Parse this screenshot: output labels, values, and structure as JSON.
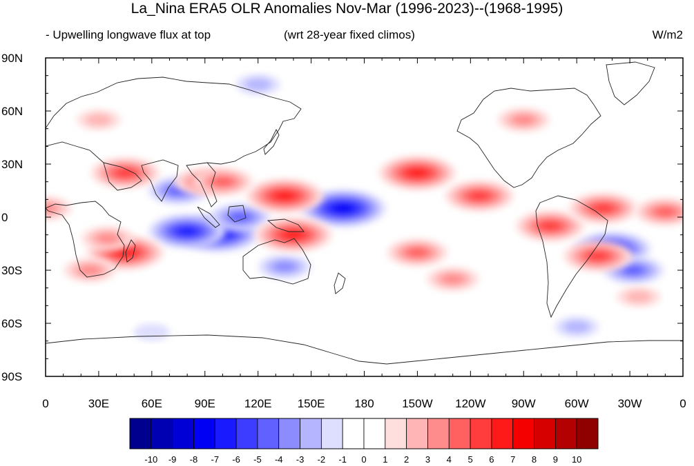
{
  "title": "La_Nina ERA5 OLR Anomalies Nov-Mar (1996-2023)--(1968-1995)",
  "subtitle_left": "- Upwelling longwave flux at top",
  "subtitle_center": "(wrt 28-year fixed climos)",
  "units": "W/m2",
  "lat_labels": [
    "90N",
    "60N",
    "30N",
    "0",
    "30S",
    "60S",
    "90S"
  ],
  "lon_labels": [
    "0",
    "30E",
    "60E",
    "90E",
    "120E",
    "150E",
    "180",
    "150W",
    "120W",
    "90W",
    "60W",
    "30W",
    "0"
  ],
  "colorbar": {
    "colors": [
      "#00008f",
      "#0000b3",
      "#0000d6",
      "#0000f5",
      "#1a1aff",
      "#3d3dff",
      "#6161ff",
      "#8c8cff",
      "#b5b5ff",
      "#dedeff",
      "#ffffff",
      "#ffffff",
      "#ffdede",
      "#ffb5b5",
      "#ff8c8c",
      "#ff6161",
      "#ff3d3d",
      "#ff1a1a",
      "#f50000",
      "#d60000",
      "#b30000",
      "#8f0000"
    ],
    "labels": [
      "-10",
      "-9",
      "-8",
      "-7",
      "-6",
      "-5",
      "-4",
      "-3",
      "-2",
      "-1",
      "0",
      "1",
      "2",
      "3",
      "4",
      "5",
      "6",
      "7",
      "8",
      "9",
      "10"
    ]
  },
  "anomalies": [
    {
      "name": "blue-indian-ocean-core",
      "lon": 97,
      "lat": -9,
      "val": -7
    },
    {
      "name": "blue-indian-ocean-east",
      "lon": 80,
      "lat": -8,
      "val": -6
    },
    {
      "name": "blue-maritime-west",
      "lon": 110,
      "lat": 0,
      "val": -4
    },
    {
      "name": "blue-bay-of-bengal",
      "lon": 75,
      "lat": 15,
      "val": -4
    },
    {
      "name": "blue-central-pacific",
      "lon": 168,
      "lat": 5,
      "val": -7
    },
    {
      "name": "blue-brazil",
      "lon": -40,
      "lat": -18,
      "val": -6
    },
    {
      "name": "blue-south-atlantic",
      "lon": -28,
      "lat": -30,
      "val": -4
    },
    {
      "name": "blue-australia",
      "lon": 135,
      "lat": -28,
      "val": -3
    },
    {
      "name": "blue-siberia",
      "lon": 120,
      "lat": 75,
      "val": -2
    },
    {
      "name": "blue-southern-ocean",
      "lon": -60,
      "lat": -62,
      "val": -2
    },
    {
      "name": "blue-antarctic",
      "lon": 60,
      "lat": -65,
      "val": -1
    },
    {
      "name": "red-arabia",
      "lon": 45,
      "lat": 25,
      "val": 5
    },
    {
      "name": "red-southern-africa",
      "lon": 45,
      "lat": -20,
      "val": 6
    },
    {
      "name": "red-east-africa",
      "lon": 35,
      "lat": -12,
      "val": 3
    },
    {
      "name": "red-south-africa",
      "lon": 25,
      "lat": -30,
      "val": 3
    },
    {
      "name": "red-west-pacific",
      "lon": 135,
      "lat": 12,
      "val": 6
    },
    {
      "name": "red-new-guinea",
      "lon": 140,
      "lat": -10,
      "val": 6
    },
    {
      "name": "red-north-pacific-subtropic",
      "lon": -150,
      "lat": 25,
      "val": 6
    },
    {
      "name": "red-south-pacific",
      "lon": -150,
      "lat": -20,
      "val": 4
    },
    {
      "name": "red-south-pacific-east",
      "lon": -130,
      "lat": -35,
      "val": 3
    },
    {
      "name": "red-central-america",
      "lon": -115,
      "lat": 12,
      "val": 5
    },
    {
      "name": "red-canada",
      "lon": -90,
      "lat": 55,
      "val": 3
    },
    {
      "name": "red-amazon",
      "lon": -75,
      "lat": -5,
      "val": 5
    },
    {
      "name": "red-south-brazil",
      "lon": -48,
      "lat": -22,
      "val": 5
    },
    {
      "name": "red-atlantic-itcz",
      "lon": -45,
      "lat": 5,
      "val": 5
    },
    {
      "name": "red-atlantic-east",
      "lon": -10,
      "lat": 3,
      "val": 4
    },
    {
      "name": "red-south-atlantic",
      "lon": -25,
      "lat": -45,
      "val": 2
    },
    {
      "name": "red-china",
      "lon": 90,
      "lat": 20,
      "val": 4
    },
    {
      "name": "red-japan",
      "lon": 100,
      "lat": 20,
      "val": 4
    },
    {
      "name": "red-europe",
      "lon": 30,
      "lat": 55,
      "val": 2
    },
    {
      "name": "red-west-africa",
      "lon": 0,
      "lat": 5,
      "val": 3
    }
  ]
}
